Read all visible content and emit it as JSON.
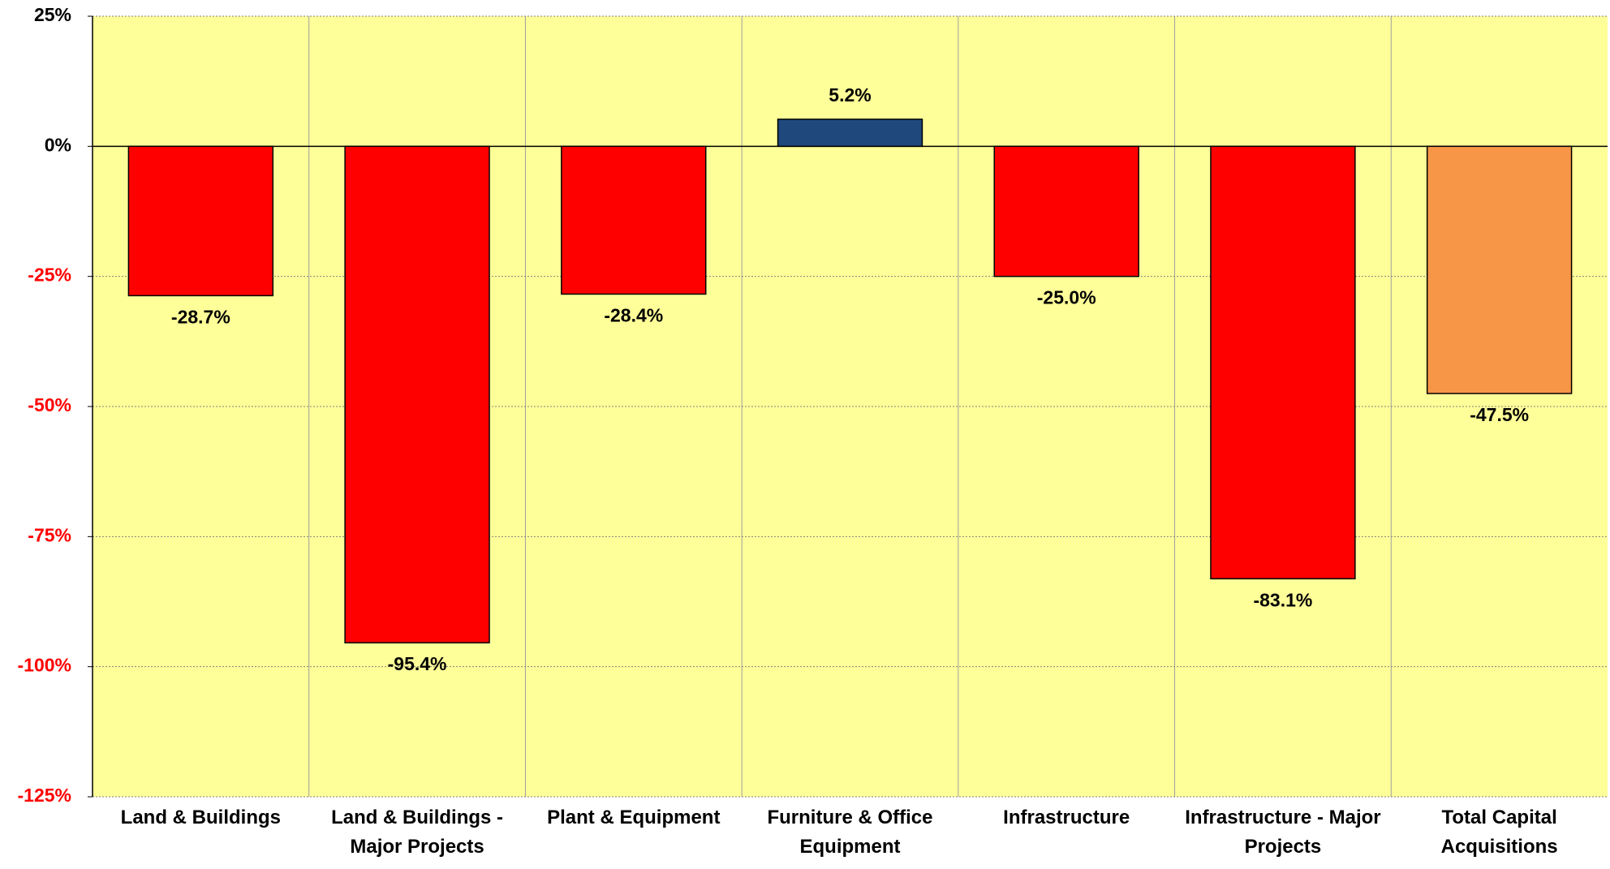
{
  "chart_data": {
    "type": "bar",
    "categories": [
      "Land & Buildings",
      "Land & Buildings - Major Projects",
      "Plant & Equipment",
      "Furniture & Office Equipment",
      "Infrastructure",
      "Infrastructure - Major Projects",
      "Total Capital Acquisitions"
    ],
    "values": [
      -28.7,
      -95.4,
      -28.4,
      5.2,
      -25.0,
      -83.1,
      -47.5
    ],
    "value_labels": [
      "-28.7%",
      "-95.4%",
      "-28.4%",
      "5.2%",
      "-25.0%",
      "-83.1%",
      "-47.5%"
    ],
    "colors": [
      "#ff0000",
      "#ff0000",
      "#ff0000",
      "#1f497d",
      "#ff0000",
      "#ff0000",
      "#f79646"
    ],
    "ylim": [
      -125,
      25
    ],
    "yticks": [
      {
        "value": 25,
        "label": "25%"
      },
      {
        "value": 0,
        "label": "0%"
      },
      {
        "value": -25,
        "label": "-25%"
      },
      {
        "value": -50,
        "label": "-50%"
      },
      {
        "value": -75,
        "label": "-75%"
      },
      {
        "value": -100,
        "label": "-100%"
      },
      {
        "value": -125,
        "label": "-125%"
      }
    ],
    "grid": true
  }
}
